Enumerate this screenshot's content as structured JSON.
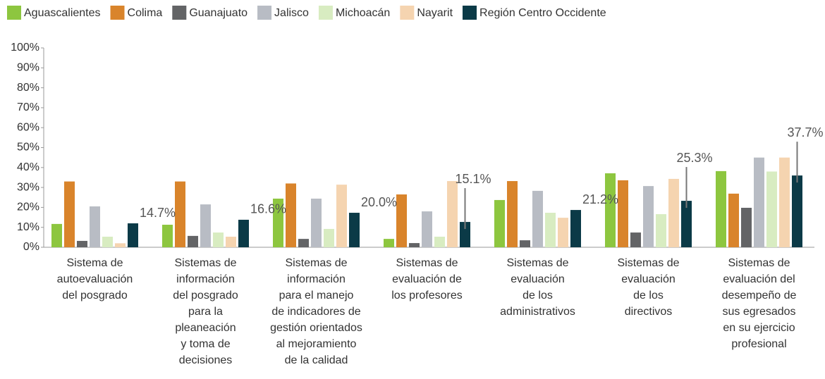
{
  "chart_data": {
    "type": "bar",
    "categories": [
      "Sistema de\nautoevaluación\ndel posgrado",
      "Sistemas de\ninformación\ndel posgrado\npara la\npleaneación\ny toma de\ndecisiones",
      "Sistemas de\ninformación\npara el manejo\nde indicadores de\ngestión orientados\nal mejoramiento\nde la calidad",
      "Sistemas de\nevaluación de\nlos profesores",
      "Sistemas de\nevaluación\nde los\nadministrativos",
      "Sistemas de\nevaluación\nde los\ndirectivos",
      "Sistemas de\nevaluación del\ndesempeño de\nsus egresados\nen su ejercicio\nprofesional"
    ],
    "series": [
      {
        "name": "Aguascalientes",
        "color": "#8dc63f",
        "values": [
          11.7,
          11.3,
          24.4,
          4.2,
          23.7,
          37.1,
          38.2
        ]
      },
      {
        "name": "Colima",
        "color": "#d9842b",
        "values": [
          33,
          33,
          32,
          26.5,
          33.2,
          33.6,
          26.9
        ]
      },
      {
        "name": "Guanajuato",
        "color": "#636466",
        "values": [
          3.2,
          5.7,
          4.2,
          2.1,
          3.5,
          7.4,
          19.8
        ]
      },
      {
        "name": "Jalisco",
        "color": "#b8bcc4",
        "values": [
          20.5,
          21.5,
          24.4,
          18,
          28.3,
          30.7,
          45
        ]
      },
      {
        "name": "Michoacán",
        "color": "#d8ecc1",
        "values": [
          5.3,
          7.4,
          9.2,
          5.3,
          17.3,
          16.6,
          38
        ]
      },
      {
        "name": "Nayarit",
        "color": "#f5d4b0",
        "values": [
          2,
          5.3,
          31.4,
          33.2,
          14.8,
          34.3,
          45
        ]
      },
      {
        "name": "Región Centro Occidente",
        "color": "#0b3a47",
        "values": [
          12,
          13.8,
          17.3,
          12.7,
          18.7,
          23.3,
          36
        ]
      }
    ],
    "annotations": [
      {
        "text": "14.7%",
        "category": 0,
        "leader": false
      },
      {
        "text": "16.6%",
        "category": 1,
        "leader": false
      },
      {
        "text": "20.0%",
        "category": 2,
        "leader": false
      },
      {
        "text": "15.1%",
        "category": 3,
        "leader": true
      },
      {
        "text": "21.2%",
        "category": 4,
        "leader": false
      },
      {
        "text": "25.3%",
        "category": 5,
        "leader": true
      },
      {
        "text": "37.7%",
        "category": 6,
        "leader": true
      }
    ],
    "ylim": [
      0,
      100
    ],
    "yticks": [
      {
        "value": 0,
        "label": "0%"
      },
      {
        "value": 10,
        "label": "10%"
      },
      {
        "value": 20,
        "label": "20%"
      },
      {
        "value": 30,
        "label": "30%"
      },
      {
        "value": 40,
        "label": "40%"
      },
      {
        "value": 50,
        "label": "50%"
      },
      {
        "value": 60,
        "label": "60%"
      },
      {
        "value": 70,
        "label": "70%"
      },
      {
        "value": 80,
        "label": "80%"
      },
      {
        "value": 90,
        "label": "90%"
      },
      {
        "value": 100,
        "label": "100%"
      }
    ],
    "grid": false,
    "legend": "top"
  }
}
